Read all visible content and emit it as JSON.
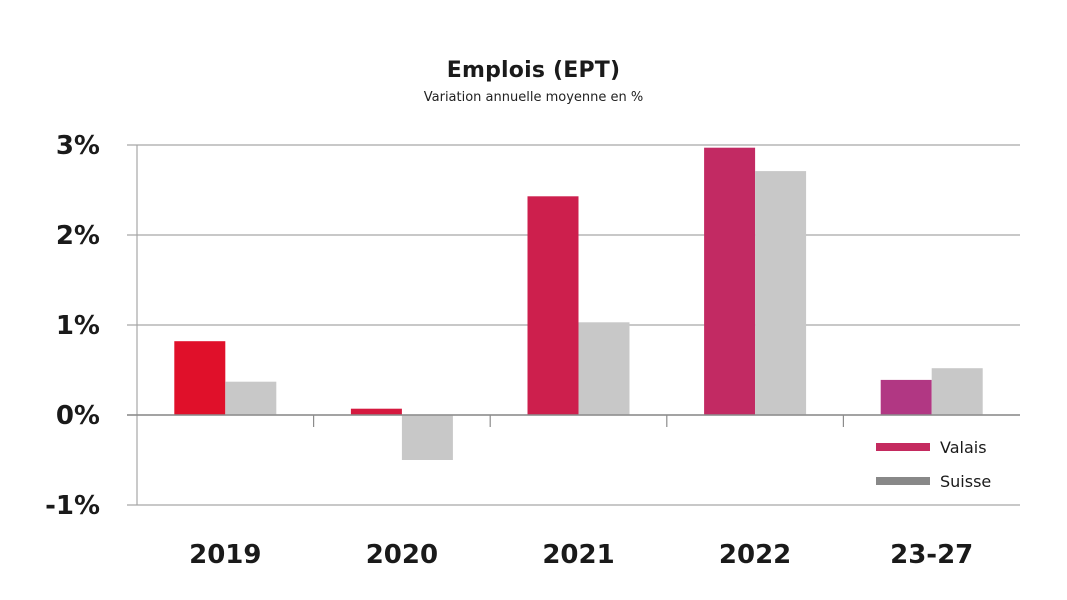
{
  "chart_data": {
    "type": "bar",
    "title": "Emplois (EPT)",
    "subtitle": "Variation annuelle moyenne en %",
    "categories": [
      "2019",
      "2020",
      "2021",
      "2022",
      "23-27"
    ],
    "series": [
      {
        "name": "Valais",
        "values": [
          0.82,
          0.07,
          2.43,
          2.97,
          0.39
        ],
        "colors": [
          "#e0102a",
          "#d5193f",
          "#cd1f4d",
          "#c22a63",
          "#b13783"
        ],
        "legend_color": "#c42a5f"
      },
      {
        "name": "Suisse",
        "values": [
          0.37,
          -0.5,
          1.03,
          2.71,
          0.52
        ],
        "color": "#c8c8c8",
        "legend_color": "#888888"
      }
    ],
    "ylim": [
      -1,
      3
    ],
    "yticks": [
      3,
      2,
      1,
      0,
      -1
    ],
    "ytick_labels": [
      "3%",
      "2%",
      "1%",
      "0%",
      "-1%"
    ],
    "grid": true,
    "legend": "bottom-right",
    "xlabel": "",
    "ylabel": ""
  }
}
